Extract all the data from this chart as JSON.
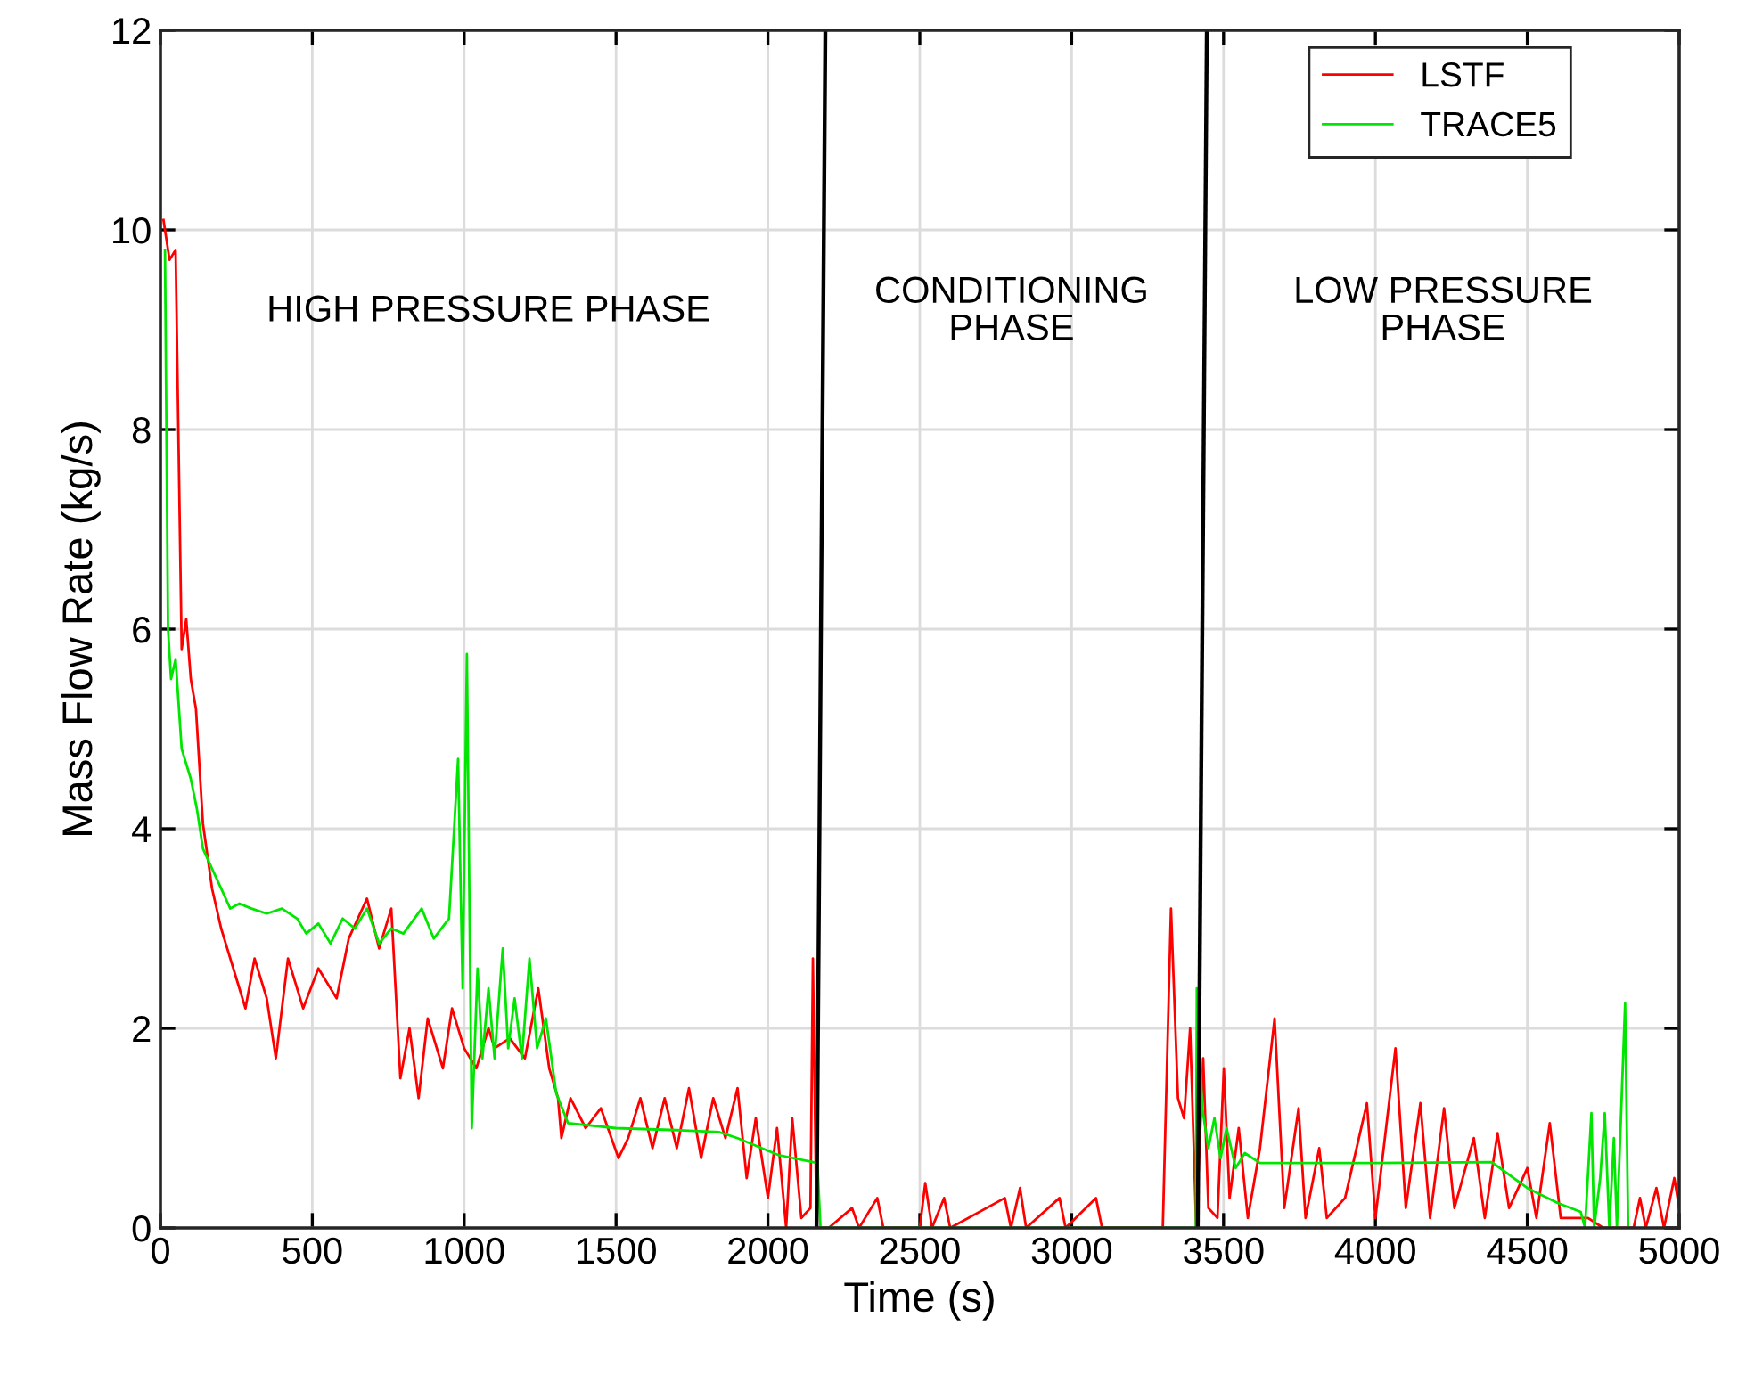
{
  "chart_data": {
    "type": "line",
    "xlabel": "Time (s)",
    "ylabel": "Mass Flow Rate (kg/s)",
    "xlim": [
      0,
      5000
    ],
    "ylim": [
      0,
      12
    ],
    "xticks": [
      0,
      500,
      1000,
      1500,
      2000,
      2500,
      3000,
      3500,
      4000,
      4500,
      5000
    ],
    "yticks": [
      0,
      2,
      4,
      6,
      8,
      10,
      12
    ],
    "grid": true,
    "legend": "top right",
    "marker": "none",
    "line_style": "solid",
    "series": [
      {
        "name": "LSTF",
        "color": "#ff0000",
        "x": [
          10,
          30,
          50,
          70,
          85,
          100,
          117,
          140,
          170,
          200,
          250,
          280,
          310,
          350,
          380,
          420,
          470,
          520,
          580,
          620,
          680,
          720,
          760,
          790,
          820,
          850,
          880,
          930,
          960,
          1000,
          1040,
          1080,
          1100,
          1150,
          1200,
          1244,
          1280,
          1309,
          1320,
          1350,
          1400,
          1450,
          1508,
          1540,
          1580,
          1620,
          1660,
          1700,
          1740,
          1780,
          1820,
          1860,
          1900,
          1930,
          1960,
          2000,
          2030,
          2060,
          2080,
          2110,
          2140,
          2148,
          2160,
          2200,
          2277,
          2300,
          2360,
          2380,
          2500,
          2518,
          2540,
          2580,
          2600,
          2780,
          2800,
          2830,
          2850,
          2960,
          2980,
          3080,
          3100,
          3300,
          3327,
          3350,
          3370,
          3390,
          3410,
          3433,
          3450,
          3480,
          3501,
          3520,
          3550,
          3580,
          3620,
          3668,
          3700,
          3747,
          3770,
          3815,
          3840,
          3900,
          3972,
          4000,
          4066,
          4100,
          4148,
          4180,
          4226,
          4260,
          4324,
          4360,
          4402,
          4440,
          4500,
          4530,
          4574,
          4610,
          4700,
          4750,
          4850,
          4871,
          4890,
          4925,
          4950,
          4984,
          5000
        ],
        "values": [
          10.1,
          9.7,
          9.8,
          5.8,
          6.1,
          5.5,
          5.2,
          4.05,
          3.4,
          3.0,
          2.5,
          2.2,
          2.7,
          2.3,
          1.7,
          2.7,
          2.2,
          2.6,
          2.3,
          2.9,
          3.3,
          2.8,
          3.2,
          1.5,
          2.0,
          1.3,
          2.1,
          1.6,
          2.2,
          1.8,
          1.6,
          2.0,
          1.8,
          1.9,
          1.7,
          2.4,
          1.6,
          1.3,
          0.9,
          1.3,
          1.0,
          1.2,
          0.7,
          0.9,
          1.3,
          0.8,
          1.3,
          0.8,
          1.4,
          0.7,
          1.3,
          0.9,
          1.4,
          0.5,
          1.1,
          0.3,
          1.0,
          0,
          1.1,
          0.1,
          0.2,
          2.7,
          0,
          0,
          0.2,
          0,
          0.3,
          0,
          0,
          0.45,
          0,
          0.3,
          0,
          0.3,
          0,
          0.4,
          0,
          0.3,
          0,
          0.3,
          0,
          0,
          3.2,
          1.3,
          1.1,
          2.0,
          0,
          1.7,
          0.2,
          0.1,
          1.6,
          0.3,
          1.0,
          0.1,
          0.8,
          2.1,
          0.2,
          1.2,
          0.1,
          0.8,
          0.1,
          0.3,
          1.25,
          0.1,
          1.8,
          0.2,
          1.25,
          0.1,
          1.2,
          0.2,
          0.9,
          0.1,
          0.95,
          0.2,
          0.6,
          0.1,
          1.05,
          0.1,
          0.1,
          0,
          0,
          0.3,
          0,
          0.4,
          0,
          0.5,
          0.2
        ]
      },
      {
        "name": "TRACE5",
        "color": "#00e600",
        "x": [
          15,
          25,
          35,
          50,
          70,
          100,
          120,
          140,
          170,
          200,
          230,
          260,
          300,
          350,
          400,
          450,
          480,
          520,
          560,
          600,
          640,
          680,
          720,
          760,
          800,
          860,
          900,
          950,
          980,
          995,
          1009,
          1025,
          1044,
          1060,
          1080,
          1100,
          1127,
          1145,
          1166,
          1190,
          1215,
          1240,
          1269,
          1303,
          1342,
          1500,
          1700,
          1840,
          1900,
          2035,
          2163,
          2173,
          3409,
          3412,
          3430,
          3450,
          3470,
          3490,
          3510,
          3540,
          3570,
          3620,
          4000,
          4383,
          4500,
          4600,
          4676,
          4690,
          4711,
          4720,
          4740,
          4755,
          4770,
          4785,
          4795,
          4822,
          4832
        ],
        "values": [
          9.8,
          6.0,
          5.5,
          5.7,
          4.8,
          4.5,
          4.2,
          3.8,
          3.6,
          3.4,
          3.2,
          3.25,
          3.2,
          3.15,
          3.2,
          3.1,
          2.95,
          3.05,
          2.85,
          3.1,
          3.0,
          3.2,
          2.85,
          3.0,
          2.95,
          3.2,
          2.9,
          3.1,
          4.7,
          2.4,
          5.75,
          1.0,
          2.6,
          1.7,
          2.4,
          1.7,
          2.8,
          1.8,
          2.3,
          1.7,
          2.7,
          1.8,
          2.1,
          1.35,
          1.05,
          1.0,
          0.98,
          0.96,
          0.9,
          0.73,
          0.65,
          0,
          0,
          2.4,
          1.2,
          0.8,
          1.1,
          0.7,
          1.0,
          0.6,
          0.75,
          0.65,
          0.65,
          0.66,
          0.4,
          0.25,
          0.16,
          0,
          1.15,
          0,
          0.5,
          1.15,
          0,
          0.9,
          0,
          2.25,
          0
        ]
      },
      {
        "color": "#000000",
        "x": [
          2160,
          2189
        ],
        "values": [
          0,
          12
        ]
      },
      {
        "color": "#000000",
        "x": [
          3415,
          3445
        ],
        "values": [
          0,
          12
        ]
      }
    ],
    "annotations": [
      "HIGH PRESSURE PHASE",
      "CONDITIONING\nPHASE",
      "LOW PRESSURE\nPHASE"
    ]
  }
}
